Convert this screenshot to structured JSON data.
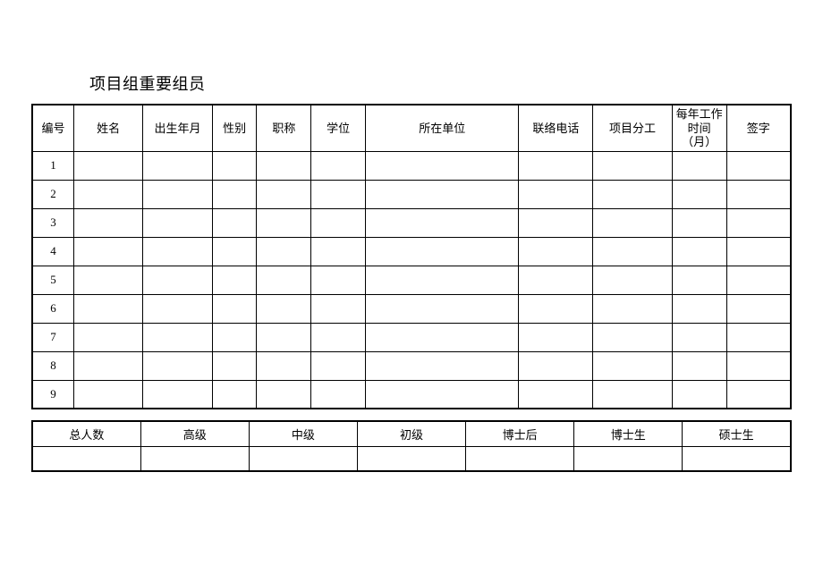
{
  "title": "项目组重要组员",
  "mainTable": {
    "headers": [
      "编号",
      "姓名",
      "出生年月",
      "性别",
      "职称",
      "学位",
      "所在单位",
      "联络电话",
      "项目分工",
      "每年工作时间（月）",
      "签字"
    ],
    "colClasses": [
      "col-num",
      "col-name",
      "col-birth",
      "col-gender",
      "col-title",
      "col-degree",
      "col-unit",
      "col-phone",
      "col-role",
      "col-worktime",
      "col-sign"
    ],
    "rows": [
      [
        "1",
        "",
        "",
        "",
        "",
        "",
        "",
        "",
        "",
        "",
        ""
      ],
      [
        "2",
        "",
        "",
        "",
        "",
        "",
        "",
        "",
        "",
        "",
        ""
      ],
      [
        "3",
        "",
        "",
        "",
        "",
        "",
        "",
        "",
        "",
        "",
        ""
      ],
      [
        "4",
        "",
        "",
        "",
        "",
        "",
        "",
        "",
        "",
        "",
        ""
      ],
      [
        "5",
        "",
        "",
        "",
        "",
        "",
        "",
        "",
        "",
        "",
        ""
      ],
      [
        "6",
        "",
        "",
        "",
        "",
        "",
        "",
        "",
        "",
        "",
        ""
      ],
      [
        "7",
        "",
        "",
        "",
        "",
        "",
        "",
        "",
        "",
        "",
        ""
      ],
      [
        "8",
        "",
        "",
        "",
        "",
        "",
        "",
        "",
        "",
        "",
        ""
      ],
      [
        "9",
        "",
        "",
        "",
        "",
        "",
        "",
        "",
        "",
        "",
        ""
      ]
    ]
  },
  "summaryTable": {
    "headers": [
      "总人数",
      "高级",
      "中级",
      "初级",
      "博士后",
      "博士生",
      "硕士生"
    ],
    "rows": [
      [
        "",
        "",
        "",
        "",
        "",
        "",
        ""
      ]
    ]
  }
}
